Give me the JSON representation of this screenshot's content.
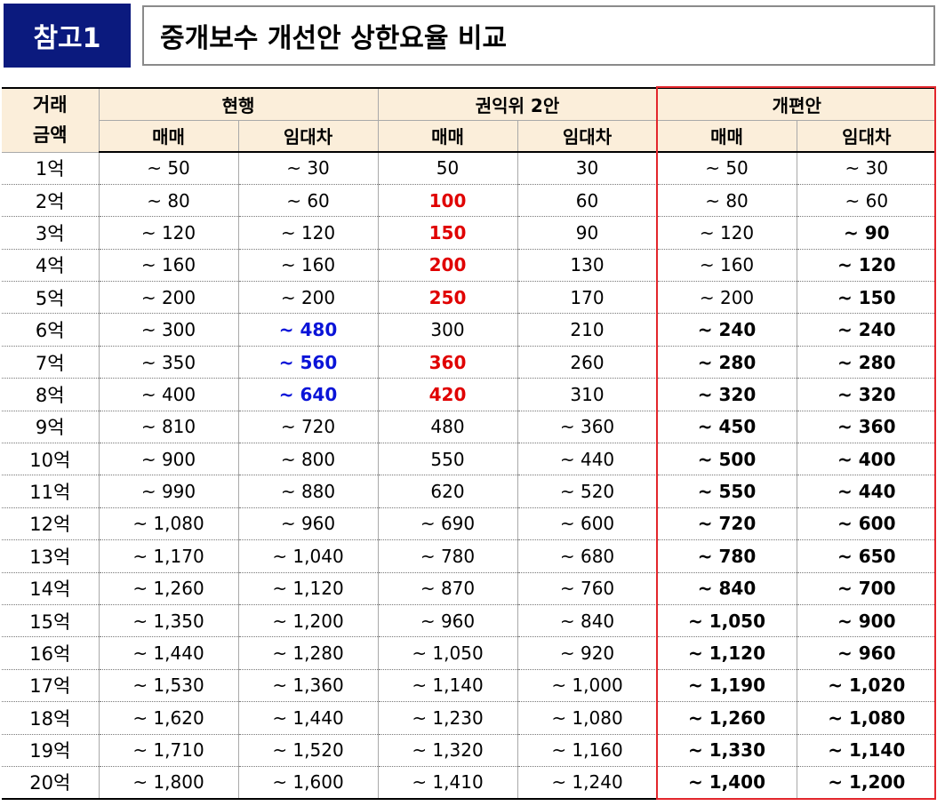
{
  "badge": "참고1",
  "title": "중개보수 개선안 상한요율 비교",
  "header": {
    "row_label": [
      "거래",
      "금액"
    ],
    "groups": [
      "현행",
      "권익위 2안",
      "개편안"
    ],
    "sub": [
      "매매",
      "임대차",
      "매매",
      "임대차",
      "매매",
      "임대차"
    ]
  },
  "rows": [
    {
      "amount": "1억",
      "cur_sale": "~ 50",
      "cur_lease": "~ 30",
      "alt_sale": "50",
      "alt_lease": "30",
      "new_sale": "~ 50",
      "new_lease": "~ 30"
    },
    {
      "amount": "2억",
      "cur_sale": "~ 80",
      "cur_lease": "~ 60",
      "alt_sale": "100",
      "alt_lease": "60",
      "new_sale": "~ 80",
      "new_lease": "~ 60"
    },
    {
      "amount": "3억",
      "cur_sale": "~ 120",
      "cur_lease": "~ 120",
      "alt_sale": "150",
      "alt_lease": "90",
      "new_sale": "~ 120",
      "new_lease": "~ 90"
    },
    {
      "amount": "4억",
      "cur_sale": "~ 160",
      "cur_lease": "~ 160",
      "alt_sale": "200",
      "alt_lease": "130",
      "new_sale": "~ 160",
      "new_lease": "~ 120"
    },
    {
      "amount": "5억",
      "cur_sale": "~ 200",
      "cur_lease": "~ 200",
      "alt_sale": "250",
      "alt_lease": "170",
      "new_sale": "~ 200",
      "new_lease": "~ 150"
    },
    {
      "amount": "6억",
      "cur_sale": "~ 300",
      "cur_lease": "~ 480",
      "alt_sale": "300",
      "alt_lease": "210",
      "new_sale": "~ 240",
      "new_lease": "~ 240"
    },
    {
      "amount": "7억",
      "cur_sale": "~ 350",
      "cur_lease": "~ 560",
      "alt_sale": "360",
      "alt_lease": "260",
      "new_sale": "~ 280",
      "new_lease": "~ 280"
    },
    {
      "amount": "8억",
      "cur_sale": "~ 400",
      "cur_lease": "~ 640",
      "alt_sale": "420",
      "alt_lease": "310",
      "new_sale": "~ 320",
      "new_lease": "~ 320"
    },
    {
      "amount": "9억",
      "cur_sale": "~ 810",
      "cur_lease": "~ 720",
      "alt_sale": "480",
      "alt_lease": "~ 360",
      "new_sale": "~ 450",
      "new_lease": "~ 360"
    },
    {
      "amount": "10억",
      "cur_sale": "~ 900",
      "cur_lease": "~ 800",
      "alt_sale": "550",
      "alt_lease": "~ 440",
      "new_sale": "~ 500",
      "new_lease": "~ 400"
    },
    {
      "amount": "11억",
      "cur_sale": "~ 990",
      "cur_lease": "~ 880",
      "alt_sale": "620",
      "alt_lease": "~ 520",
      "new_sale": "~ 550",
      "new_lease": "~ 440"
    },
    {
      "amount": "12억",
      "cur_sale": "~ 1,080",
      "cur_lease": "~ 960",
      "alt_sale": "~ 690",
      "alt_lease": "~ 600",
      "new_sale": "~ 720",
      "new_lease": "~ 600"
    },
    {
      "amount": "13억",
      "cur_sale": "~ 1,170",
      "cur_lease": "~ 1,040",
      "alt_sale": "~ 780",
      "alt_lease": "~ 680",
      "new_sale": "~ 780",
      "new_lease": "~ 650"
    },
    {
      "amount": "14억",
      "cur_sale": "~ 1,260",
      "cur_lease": "~ 1,120",
      "alt_sale": "~ 870",
      "alt_lease": "~ 760",
      "new_sale": "~ 840",
      "new_lease": "~ 700"
    },
    {
      "amount": "15억",
      "cur_sale": "~ 1,350",
      "cur_lease": "~ 1,200",
      "alt_sale": "~ 960",
      "alt_lease": "~ 840",
      "new_sale": "~ 1,050",
      "new_lease": "~ 900"
    },
    {
      "amount": "16억",
      "cur_sale": "~ 1,440",
      "cur_lease": "~ 1,280",
      "alt_sale": "~ 1,050",
      "alt_lease": "~ 920",
      "new_sale": "~ 1,120",
      "new_lease": "~ 960"
    },
    {
      "amount": "17억",
      "cur_sale": "~ 1,530",
      "cur_lease": "~ 1,360",
      "alt_sale": "~ 1,140",
      "alt_lease": "~ 1,000",
      "new_sale": "~ 1,190",
      "new_lease": "~ 1,020"
    },
    {
      "amount": "18억",
      "cur_sale": "~ 1,620",
      "cur_lease": "~ 1,440",
      "alt_sale": "~ 1,230",
      "alt_lease": "~ 1,080",
      "new_sale": "~ 1,260",
      "new_lease": "~ 1,080"
    },
    {
      "amount": "19억",
      "cur_sale": "~ 1,710",
      "cur_lease": "~ 1,520",
      "alt_sale": "~ 1,320",
      "alt_lease": "~ 1,160",
      "new_sale": "~ 1,330",
      "new_lease": "~ 1,140"
    },
    {
      "amount": "20억",
      "cur_sale": "~ 1,800",
      "cur_lease": "~ 1,600",
      "alt_sale": "~ 1,410",
      "alt_lease": "~ 1,240",
      "new_sale": "~ 1,400",
      "new_lease": "~ 1,200"
    }
  ],
  "highlight": {
    "red_text_color": "#e00000",
    "blue_text_color": "#0a14d8",
    "box_color": "#e3262c",
    "header_bg": "#fbeeda",
    "badge_bg": "#0b1a7e"
  }
}
